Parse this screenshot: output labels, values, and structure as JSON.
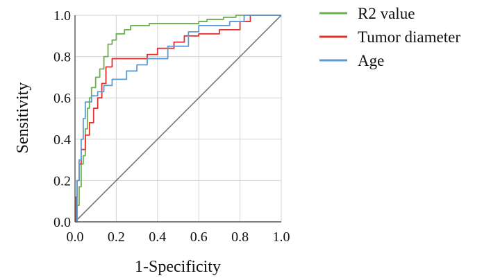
{
  "chart_data": {
    "type": "line",
    "xlabel": "1-Specificity",
    "ylabel": "Sensitivity",
    "xlim": [
      0,
      1
    ],
    "ylim": [
      0,
      1
    ],
    "x_ticks": [
      "0.0",
      "0.2",
      "0.4",
      "0.6",
      "0.8",
      "1.0"
    ],
    "y_ticks": [
      "0.0",
      "0.2",
      "0.4",
      "0.6",
      "0.8",
      "1.0"
    ],
    "grid": true,
    "legend_position": "top-right",
    "reference_line": {
      "x": [
        0,
        1
      ],
      "y": [
        0,
        1
      ],
      "color": "#777777"
    },
    "series": [
      {
        "name": "R2 value",
        "color": "#6ab04c",
        "x": [
          0,
          0.01,
          0.01,
          0.02,
          0.02,
          0.03,
          0.03,
          0.04,
          0.04,
          0.05,
          0.05,
          0.06,
          0.06,
          0.07,
          0.07,
          0.08,
          0.08,
          0.1,
          0.1,
          0.12,
          0.12,
          0.14,
          0.14,
          0.16,
          0.16,
          0.18,
          0.18,
          0.2,
          0.2,
          0.24,
          0.24,
          0.27,
          0.27,
          0.36,
          0.36,
          0.6,
          0.6,
          0.64,
          0.64,
          0.72,
          0.72,
          0.78,
          0.78,
          1.0
        ],
        "y": [
          0,
          0,
          0.08,
          0.08,
          0.17,
          0.17,
          0.28,
          0.28,
          0.32,
          0.32,
          0.45,
          0.45,
          0.55,
          0.55,
          0.6,
          0.6,
          0.65,
          0.65,
          0.7,
          0.7,
          0.74,
          0.74,
          0.8,
          0.8,
          0.86,
          0.86,
          0.88,
          0.88,
          0.91,
          0.91,
          0.93,
          0.93,
          0.95,
          0.95,
          0.96,
          0.96,
          0.97,
          0.97,
          0.98,
          0.98,
          0.99,
          0.99,
          1.0,
          1.0
        ]
      },
      {
        "name": "Tumor diameter",
        "color": "#e0312f",
        "x": [
          0,
          0.005,
          0.005,
          0.01,
          0.01,
          0.02,
          0.02,
          0.03,
          0.03,
          0.05,
          0.05,
          0.07,
          0.07,
          0.09,
          0.09,
          0.11,
          0.11,
          0.13,
          0.13,
          0.15,
          0.15,
          0.18,
          0.18,
          0.35,
          0.35,
          0.4,
          0.4,
          0.48,
          0.48,
          0.53,
          0.53,
          0.6,
          0.6,
          0.7,
          0.7,
          0.8,
          0.8,
          0.85,
          0.85,
          1.0
        ],
        "y": [
          0,
          0,
          0.12,
          0.12,
          0.2,
          0.2,
          0.28,
          0.28,
          0.35,
          0.35,
          0.42,
          0.42,
          0.48,
          0.48,
          0.55,
          0.55,
          0.6,
          0.6,
          0.67,
          0.67,
          0.75,
          0.75,
          0.79,
          0.79,
          0.81,
          0.81,
          0.84,
          0.84,
          0.87,
          0.87,
          0.9,
          0.9,
          0.91,
          0.91,
          0.93,
          0.93,
          0.97,
          0.97,
          1.0,
          1.0
        ]
      },
      {
        "name": "Age",
        "color": "#5b9bd5",
        "x": [
          0,
          0.01,
          0.01,
          0.02,
          0.02,
          0.03,
          0.03,
          0.04,
          0.04,
          0.05,
          0.05,
          0.08,
          0.08,
          0.11,
          0.11,
          0.14,
          0.14,
          0.18,
          0.18,
          0.25,
          0.25,
          0.3,
          0.3,
          0.35,
          0.35,
          0.45,
          0.45,
          0.55,
          0.55,
          0.6,
          0.6,
          0.75,
          0.75,
          0.82,
          0.82,
          1.0
        ],
        "y": [
          0,
          0,
          0.2,
          0.2,
          0.3,
          0.3,
          0.4,
          0.4,
          0.5,
          0.5,
          0.58,
          0.58,
          0.61,
          0.61,
          0.63,
          0.63,
          0.66,
          0.66,
          0.69,
          0.69,
          0.73,
          0.73,
          0.76,
          0.76,
          0.79,
          0.79,
          0.85,
          0.85,
          0.92,
          0.92,
          0.95,
          0.95,
          0.97,
          0.97,
          1.0,
          1.0
        ]
      }
    ]
  }
}
